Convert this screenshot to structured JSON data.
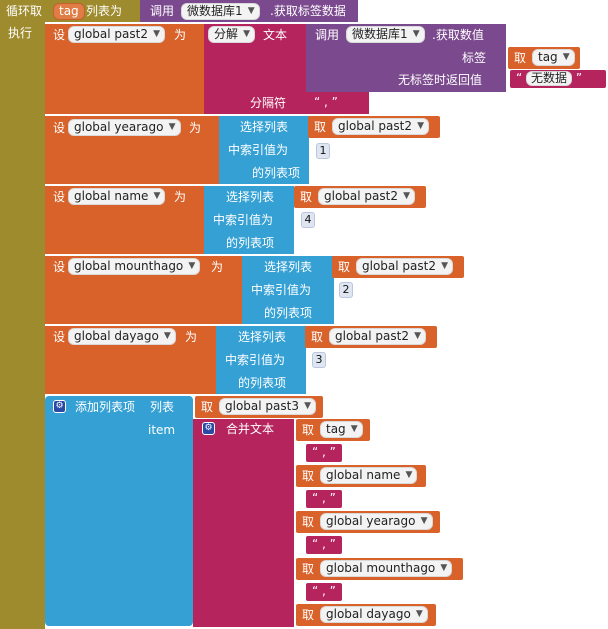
{
  "foreach": {
    "label": "循环取",
    "var": "tag",
    "list_label": "列表为",
    "do_label": "执行"
  },
  "call_blocks": {
    "call_label": "调用",
    "component": "微数据库1",
    "get_tags": ".获取标签数据",
    "get_value": ".获取数值",
    "tag_label": "标签",
    "default_label": "无标签时返回值",
    "default_value": "无数据"
  },
  "split": {
    "label": "分解",
    "text_label": "文本",
    "sep_label": "分隔符",
    "sep_value": ","
  },
  "set_label": "设",
  "to_label": "为",
  "get_label": "取",
  "select": {
    "line1": "选择列表",
    "line2": "中索引值为",
    "line3": "的列表项"
  },
  "assignments": [
    {
      "var": "global past2"
    },
    {
      "var": "global yearago",
      "source": "global past2",
      "index": "1"
    },
    {
      "var": "global name",
      "source": "global past2",
      "index": "4"
    },
    {
      "var": "global mounthago",
      "source": "global past2",
      "index": "2"
    },
    {
      "var": "global dayago",
      "source": "global past2",
      "index": "3"
    }
  ],
  "add_items": {
    "label": "添加列表项",
    "list_label": "列表",
    "list_var": "global past3",
    "item_label": "item",
    "join_label": "合并文本",
    "join_parts": [
      "tag",
      ",",
      "global name",
      ",",
      "global yearago",
      ",",
      "global mounthago",
      ",",
      "global dayago"
    ]
  },
  "colors": {
    "orange": "#d9622b",
    "olive": "#9e8b2d",
    "purple": "#7b4a8e",
    "crimson": "#b5245d",
    "sky": "#35a0d4",
    "navy": "#2d4aa0"
  }
}
